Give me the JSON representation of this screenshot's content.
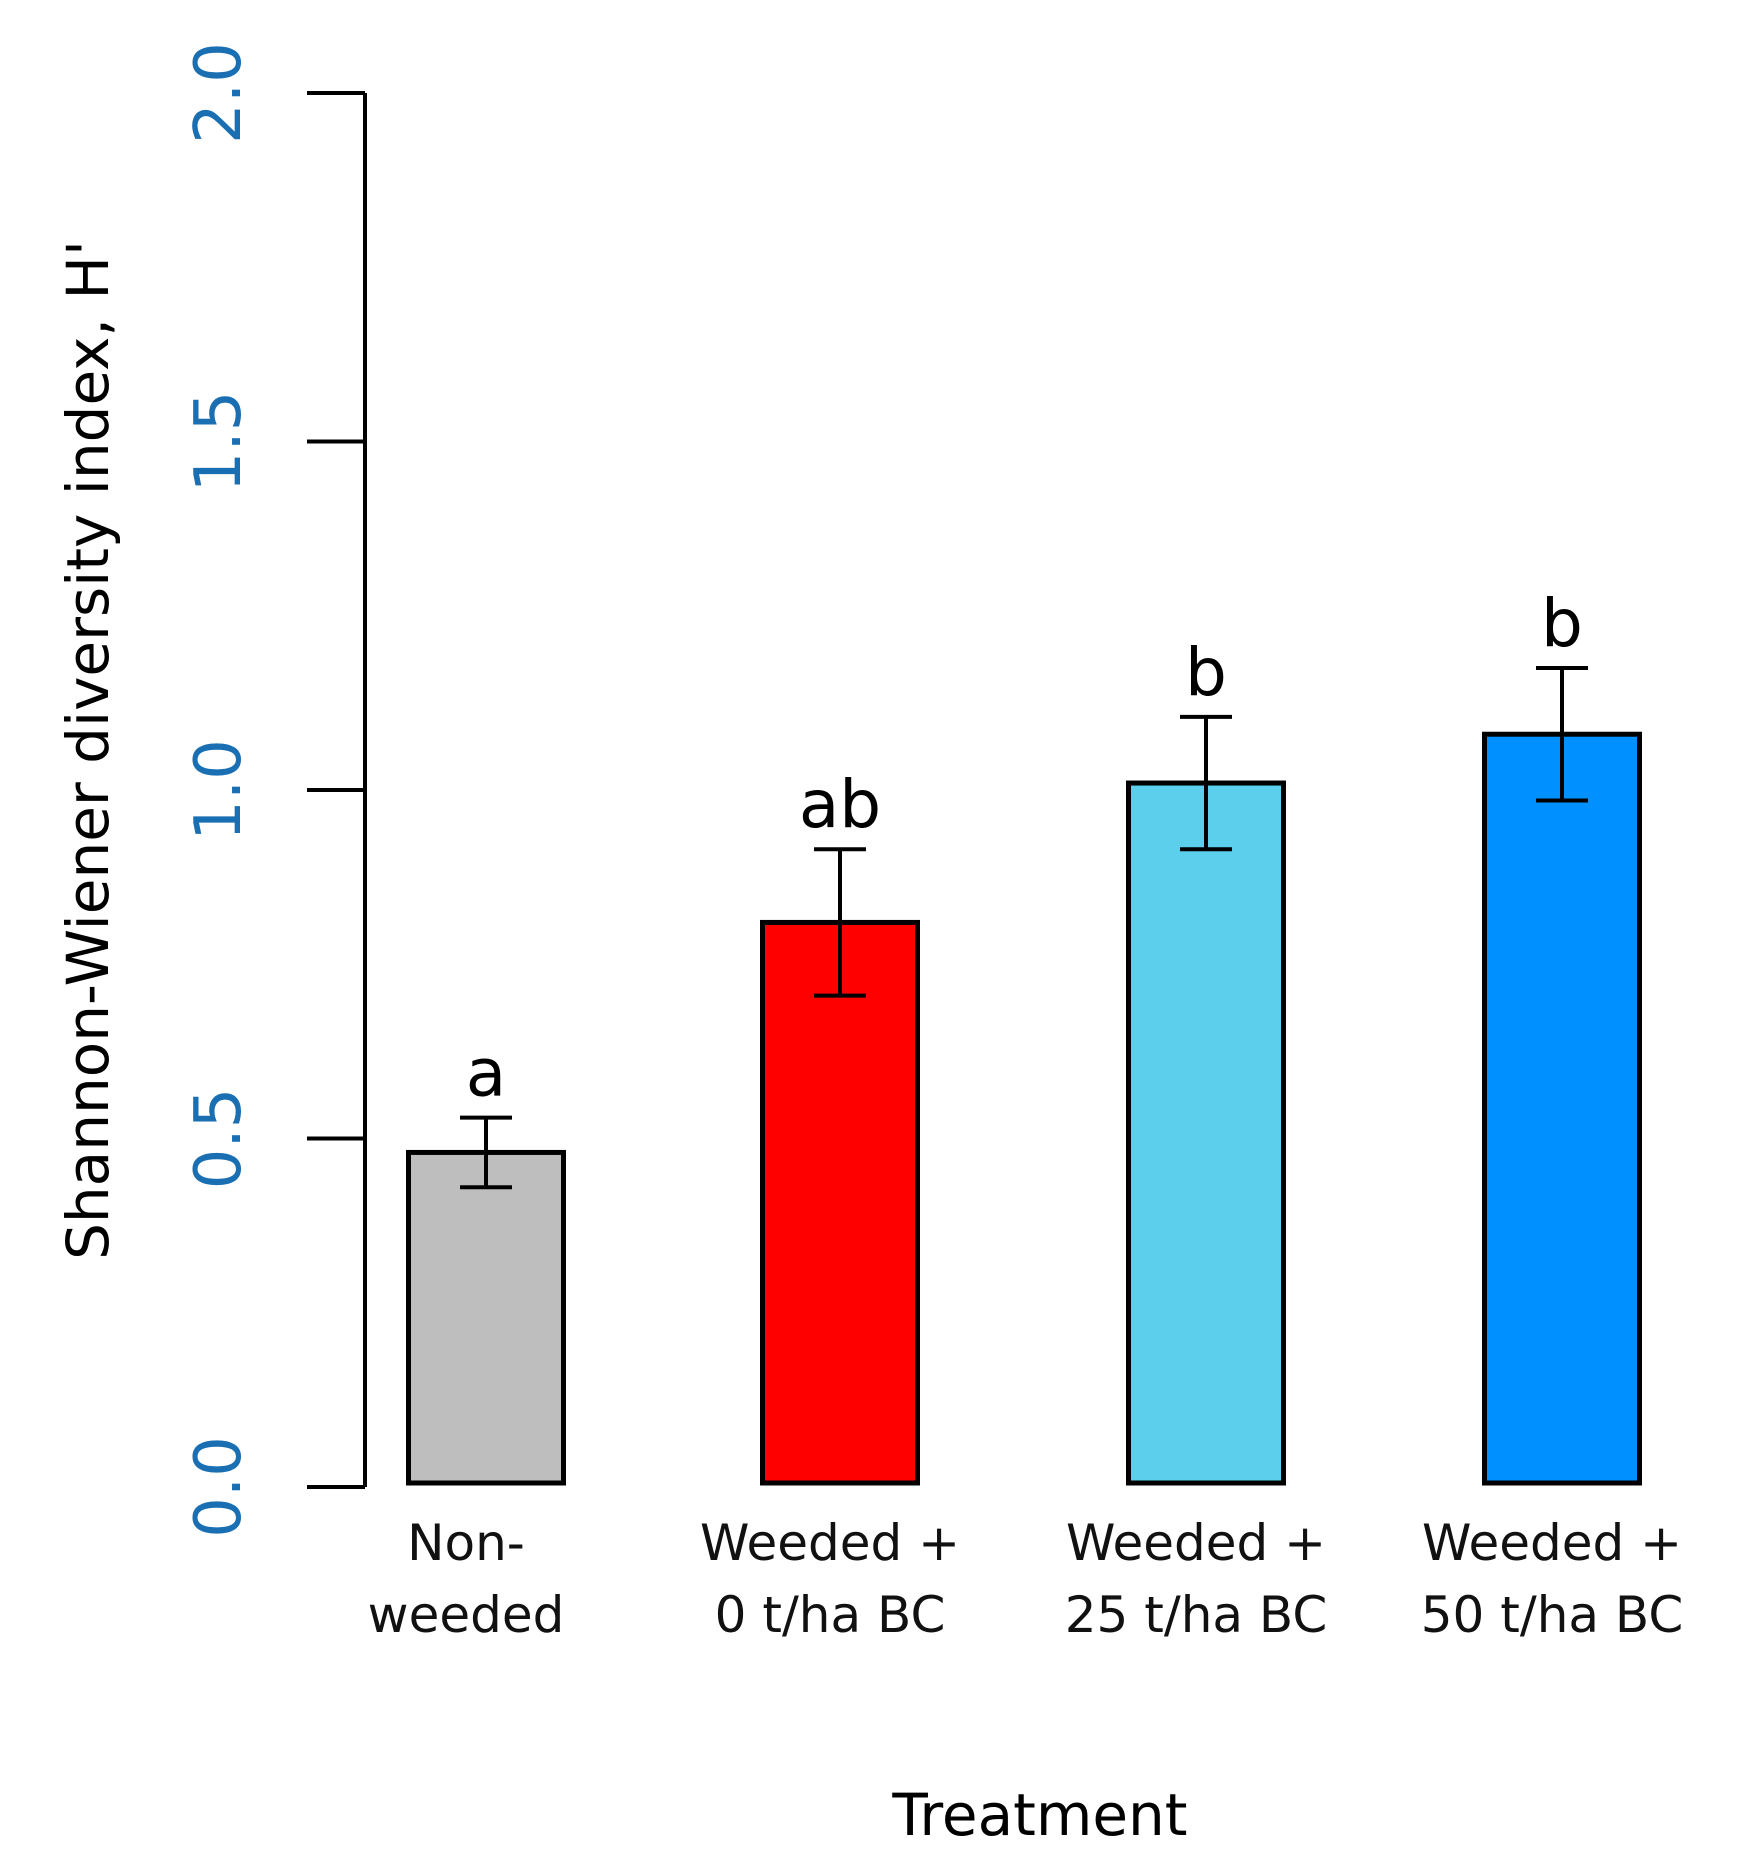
{
  "chart_data": {
    "type": "bar",
    "title": "",
    "xlabel": "Treatment",
    "ylabel": "Shannon-Wiener diversity index, H'",
    "ylim": [
      0,
      2.0
    ],
    "yticks": [
      "0.0",
      "0.5",
      "1.0",
      "1.5",
      "2.0"
    ],
    "grid": false,
    "categories": [
      [
        "Non-",
        "weeded"
      ],
      [
        "Weeded +",
        "0 t/ha BC"
      ],
      [
        "Weeded +",
        "25 t/ha BC"
      ],
      [
        "Weeded +",
        "50 t/ha BC"
      ]
    ],
    "values": [
      0.48,
      0.81,
      1.01,
      1.08
    ],
    "errors": [
      0.05,
      0.105,
      0.095,
      0.095
    ],
    "significance": [
      "a",
      "ab",
      "b",
      "b"
    ],
    "colors": [
      "#bebebe",
      "#ff0000",
      "#5bcfec",
      "#0090ff"
    ]
  }
}
